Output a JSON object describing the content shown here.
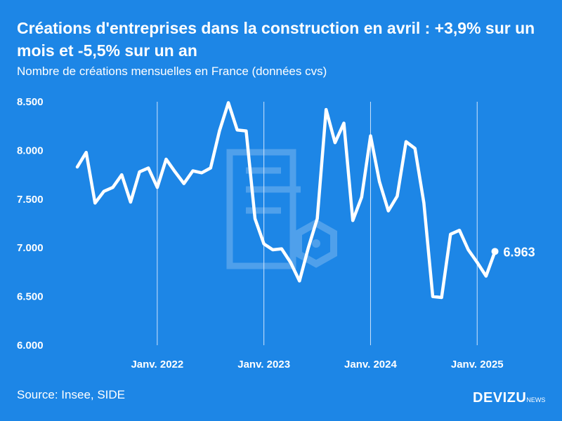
{
  "title": "Créations d'entreprises dans la construction en avril : +3,9% sur un mois et -5,5% sur un an",
  "subtitle": "Nombre de créations mensuelles en France (données cvs)",
  "source": "Source: Insee, SIDE",
  "logo": {
    "main": "DEVIZU",
    "suffix": "NEWS"
  },
  "colors": {
    "background": "#1d86e6",
    "line": "#ffffff",
    "grid": "#cfe4fb"
  },
  "chart_data": {
    "type": "line",
    "title": "Créations d'entreprises dans la construction en avril : +3,9% sur un mois et -5,5% sur un an",
    "ylabel": "",
    "xlabel": "",
    "ylim": [
      6000,
      8500
    ],
    "yticks": [
      6000,
      6500,
      7000,
      7500,
      8000,
      8500
    ],
    "ytick_labels": [
      "6.000",
      "6.500",
      "7.000",
      "7.500",
      "8.000",
      "8.500"
    ],
    "xticks": [
      {
        "month_index": 9,
        "label": "Janv. 2022"
      },
      {
        "month_index": 21,
        "label": "Janv. 2023"
      },
      {
        "month_index": 33,
        "label": "Janv. 2024"
      },
      {
        "month_index": 45,
        "label": "Janv. 2025"
      }
    ],
    "xrange": [
      0,
      48
    ],
    "vertical_grid": true,
    "series": [
      {
        "values": [
          7830,
          7980,
          7460,
          7580,
          7620,
          7750,
          7470,
          7780,
          7820,
          7620,
          7910,
          7780,
          7660,
          7790,
          7770,
          7820,
          8200,
          8490,
          8210,
          8200,
          7300,
          7040,
          6980,
          6990,
          6850,
          6660,
          7000,
          7300,
          8420,
          8080,
          8280,
          7280,
          7520,
          8150,
          7680,
          7380,
          7530,
          8090,
          8020,
          7460,
          6500,
          6490,
          7140,
          7180,
          6980,
          6850,
          6710,
          6963
        ],
        "end_label": "6.963"
      }
    ]
  }
}
